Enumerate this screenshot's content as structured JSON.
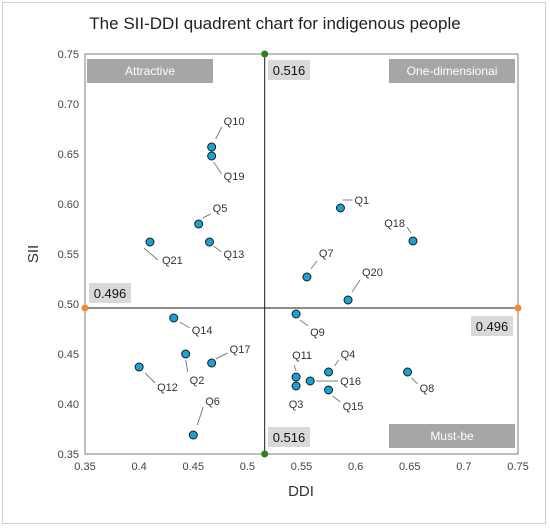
{
  "chart_data": {
    "type": "scatter",
    "title": "The SII-DDI quadrent chart for indigenous people",
    "xlabel": "DDI",
    "ylabel": "SII",
    "xlim": [
      0.35,
      0.75
    ],
    "ylim": [
      0.35,
      0.75
    ],
    "x_ticks": [
      "0.35",
      "0.4",
      "0.45",
      "0.5",
      "0.55",
      "0.6",
      "0.65",
      "0.7",
      "0.75"
    ],
    "y_ticks": [
      "0.35",
      "0.40",
      "0.45",
      "0.50",
      "0.55",
      "0.60",
      "0.65",
      "0.70",
      "0.75"
    ],
    "grid": false,
    "threshold_x": 0.516,
    "threshold_y": 0.496,
    "threshold_x_label": "0.516",
    "threshold_y_label": "0.496",
    "quadrants": {
      "top_left": "Attractive",
      "top_right": "One-dimensionai",
      "bottom_right": "Must-be"
    },
    "points": [
      {
        "label": "Q1",
        "x": 0.586,
        "y": 0.596
      },
      {
        "label": "Q3",
        "x": 0.545,
        "y": 0.418
      },
      {
        "label": "Q4",
        "x": 0.575,
        "y": 0.432
      },
      {
        "label": "Q5",
        "x": 0.455,
        "y": 0.58
      },
      {
        "label": "Q6",
        "x": 0.45,
        "y": 0.369
      },
      {
        "label": "Q7",
        "x": 0.555,
        "y": 0.527
      },
      {
        "label": "Q8",
        "x": 0.648,
        "y": 0.432
      },
      {
        "label": "Q9",
        "x": 0.545,
        "y": 0.49
      },
      {
        "label": "Q10",
        "x": 0.467,
        "y": 0.657
      },
      {
        "label": "Q11",
        "x": 0.545,
        "y": 0.427
      },
      {
        "label": "Q12",
        "x": 0.4,
        "y": 0.437
      },
      {
        "label": "Q13",
        "x": 0.465,
        "y": 0.562
      },
      {
        "label": "Q14",
        "x": 0.432,
        "y": 0.486
      },
      {
        "label": "Q15",
        "x": 0.575,
        "y": 0.414
      },
      {
        "label": "Q16",
        "x": 0.558,
        "y": 0.423
      },
      {
        "label": "Q17",
        "x": 0.467,
        "y": 0.441
      },
      {
        "label": "Q18",
        "x": 0.653,
        "y": 0.563
      },
      {
        "label": "Q19",
        "x": 0.467,
        "y": 0.648
      },
      {
        "label": "Q2",
        "x": 0.443,
        "y": 0.45
      },
      {
        "label": "Q20",
        "x": 0.593,
        "y": 0.504
      },
      {
        "label": "Q21",
        "x": 0.41,
        "y": 0.562
      }
    ],
    "colors": {
      "point_fill": "#1ba1d6",
      "point_stroke": "#1a1a1a",
      "quadrant_box": "#a6a6a6",
      "threshold_box": "#d9d9d9",
      "marker_green": "#2e7d1e",
      "marker_orange": "#f08a3c"
    }
  }
}
